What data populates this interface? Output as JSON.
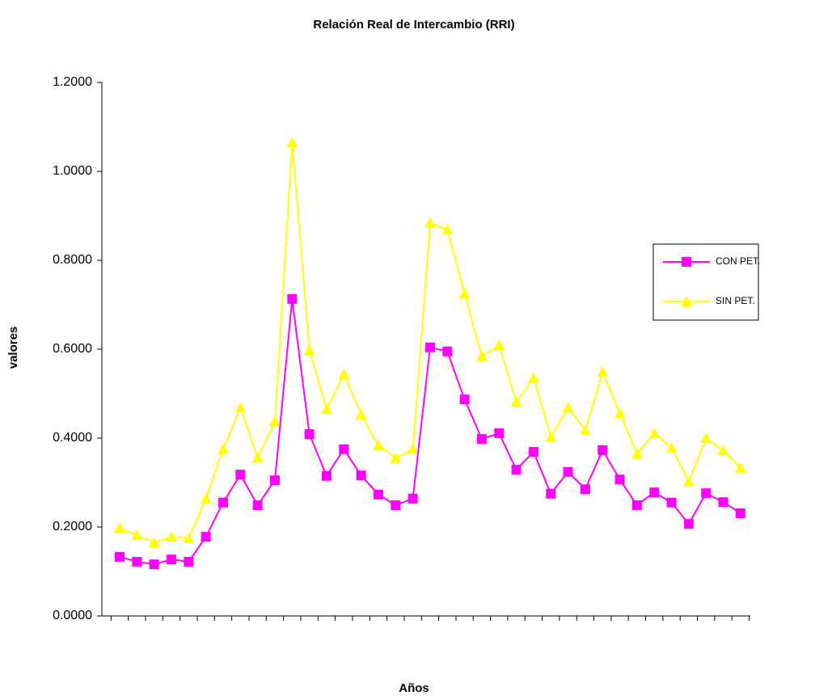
{
  "chart_data": {
    "type": "line",
    "title": "Relación Real de Intercambio (RRI)",
    "x_label": "Años",
    "y_label": "valores",
    "categories": [
      null,
      null,
      null,
      null,
      null,
      null,
      null,
      null,
      null,
      null,
      null,
      null,
      null,
      null,
      null,
      null,
      null,
      null,
      null,
      null,
      null,
      null,
      null,
      null,
      null,
      null,
      null,
      null,
      null,
      null,
      null,
      null,
      null,
      null,
      null,
      null,
      null
    ],
    "series": [
      {
        "name": "CON PET.",
        "color": "#ff00ff",
        "marker": "square",
        "values": [
          0.133,
          0.122,
          0.116,
          0.127,
          0.122,
          0.178,
          0.255,
          0.318,
          0.249,
          0.305,
          0.713,
          0.409,
          0.315,
          0.375,
          0.316,
          0.273,
          0.249,
          0.264,
          0.604,
          0.595,
          0.487,
          0.398,
          0.411,
          0.329,
          0.369,
          0.275,
          0.324,
          0.285,
          0.373,
          0.307,
          0.249,
          0.278,
          0.255,
          0.207,
          0.276,
          0.256,
          0.231
        ]
      },
      {
        "name": "SIN PET.",
        "color": "#ffff00",
        "marker": "triangle",
        "values": [
          0.198,
          0.182,
          0.165,
          0.178,
          0.175,
          0.264,
          0.375,
          0.469,
          0.356,
          0.438,
          1.065,
          0.598,
          0.465,
          0.544,
          0.453,
          0.384,
          0.355,
          0.375,
          0.884,
          0.869,
          0.725,
          0.584,
          0.609,
          0.482,
          0.536,
          0.403,
          0.469,
          0.418,
          0.549,
          0.456,
          0.365,
          0.411,
          0.378,
          0.302,
          0.4,
          0.372,
          0.333
        ]
      }
    ],
    "ylim": [
      0,
      1.2
    ],
    "yticks": [
      {
        "value": 0,
        "label": "0.0000"
      },
      {
        "value": 0.2,
        "label": "0.2000"
      },
      {
        "value": 0.4,
        "label": "0.4000"
      },
      {
        "value": 0.6,
        "label": "0.6000"
      },
      {
        "value": 0.8,
        "label": "0.8000"
      },
      {
        "value": 1.0,
        "label": "1.0000"
      },
      {
        "value": 1.2,
        "label": "1.2000"
      }
    ],
    "grid": false,
    "legend": "right"
  }
}
